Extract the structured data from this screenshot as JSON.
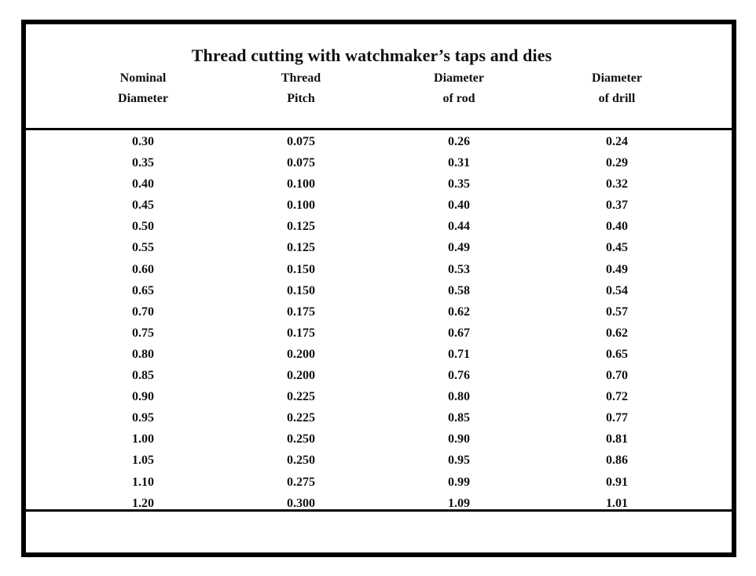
{
  "table": {
    "title": "Thread cutting with watchmaker’s taps and dies",
    "headers": [
      [
        "Nominal",
        "Diameter"
      ],
      [
        "Thread",
        "Pitch"
      ],
      [
        "Diameter",
        "of rod"
      ],
      [
        "Diameter",
        "of drill"
      ]
    ],
    "rows": [
      [
        "0.30",
        "0.075",
        "0.26",
        "0.24"
      ],
      [
        "0.35",
        "0.075",
        "0.31",
        "0.29"
      ],
      [
        "0.40",
        "0.100",
        "0.35",
        "0.32"
      ],
      [
        "0.45",
        "0.100",
        "0.40",
        "0.37"
      ],
      [
        "0.50",
        "0.125",
        "0.44",
        "0.40"
      ],
      [
        "0.55",
        "0.125",
        "0.49",
        "0.45"
      ],
      [
        "0.60",
        "0.150",
        "0.53",
        "0.49"
      ],
      [
        "0.65",
        "0.150",
        "0.58",
        "0.54"
      ],
      [
        "0.70",
        "0.175",
        "0.62",
        "0.57"
      ],
      [
        "0.75",
        "0.175",
        "0.67",
        "0.62"
      ],
      [
        "0.80",
        "0.200",
        "0.71",
        "0.65"
      ],
      [
        "0.85",
        "0.200",
        "0.76",
        "0.70"
      ],
      [
        "0.90",
        "0.225",
        "0.80",
        "0.72"
      ],
      [
        "0.95",
        "0.225",
        "0.85",
        "0.77"
      ],
      [
        "1.00",
        "0.250",
        "0.90",
        "0.81"
      ],
      [
        "1.05",
        "0.250",
        "0.95",
        "0.86"
      ],
      [
        "1.10",
        "0.275",
        "0.99",
        "0.91"
      ],
      [
        "1.20",
        "0.300",
        "1.09",
        "1.01"
      ]
    ]
  }
}
